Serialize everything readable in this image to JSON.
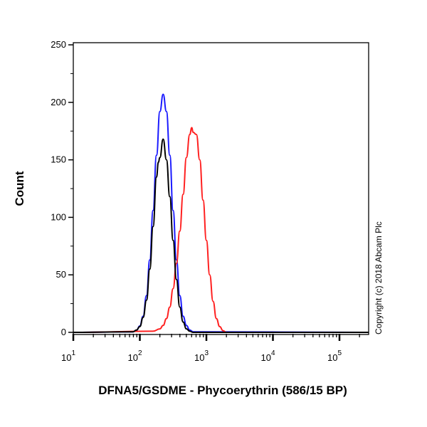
{
  "chart_data": {
    "type": "line",
    "title": "",
    "xlabel": "DFNA5/GSDME - Phycoerythrin (586/15 BP)",
    "ylabel": "Count",
    "x_scale": "log",
    "xlim": [
      10,
      275000
    ],
    "ylim": [
      0,
      255
    ],
    "x_tick_labels": [
      {
        "base": "10",
        "exp": "1"
      },
      {
        "base": "10",
        "exp": "2"
      },
      {
        "base": "10",
        "exp": "3"
      },
      {
        "base": "10",
        "exp": "4"
      },
      {
        "base": "10",
        "exp": "5"
      }
    ],
    "y_ticks": [
      0,
      50,
      100,
      150,
      200,
      250
    ],
    "grid": false,
    "legend": "none",
    "annotation": "Copyright (c) 2018 Abcam Plc",
    "series": [
      {
        "color": "#1a1aff",
        "x": [
          10,
          79,
          89,
          100,
          112,
          126,
          141,
          158,
          178,
          200,
          224,
          251,
          282,
          316,
          355,
          398,
          447,
          501,
          562,
          631,
          275000
        ],
        "y": [
          0,
          0.5,
          1.8,
          5.6,
          14,
          32,
          63,
          106,
          154,
          192,
          207,
          192,
          154,
          106,
          63,
          32,
          14,
          6,
          2,
          0.5,
          0
        ]
      },
      {
        "color": "#ff2020",
        "x": [
          10,
          158,
          200,
          224,
          251,
          282,
          316,
          355,
          398,
          447,
          501,
          562,
          603,
          631,
          708,
          794,
          891,
          1000,
          1122,
          1259,
          1413,
          1585,
          1778,
          1995,
          275000
        ],
        "y": [
          0,
          1,
          3,
          6,
          12,
          22,
          38,
          60,
          88,
          120,
          152,
          172,
          178,
          174,
          172,
          150,
          115,
          80,
          50,
          27,
          12,
          5,
          1.5,
          0,
          0
        ]
      },
      {
        "color": "#000000",
        "x": [
          10,
          79,
          89,
          100,
          112,
          126,
          141,
          158,
          178,
          190,
          200,
          224,
          251,
          282,
          316,
          355,
          398,
          447,
          501,
          562,
          631,
          275000
        ],
        "y": [
          0,
          0.5,
          2,
          5,
          13,
          28,
          55,
          92,
          135,
          148,
          152,
          168,
          150,
          118,
          80,
          46,
          22,
          9,
          3,
          1,
          0,
          0
        ]
      }
    ]
  }
}
